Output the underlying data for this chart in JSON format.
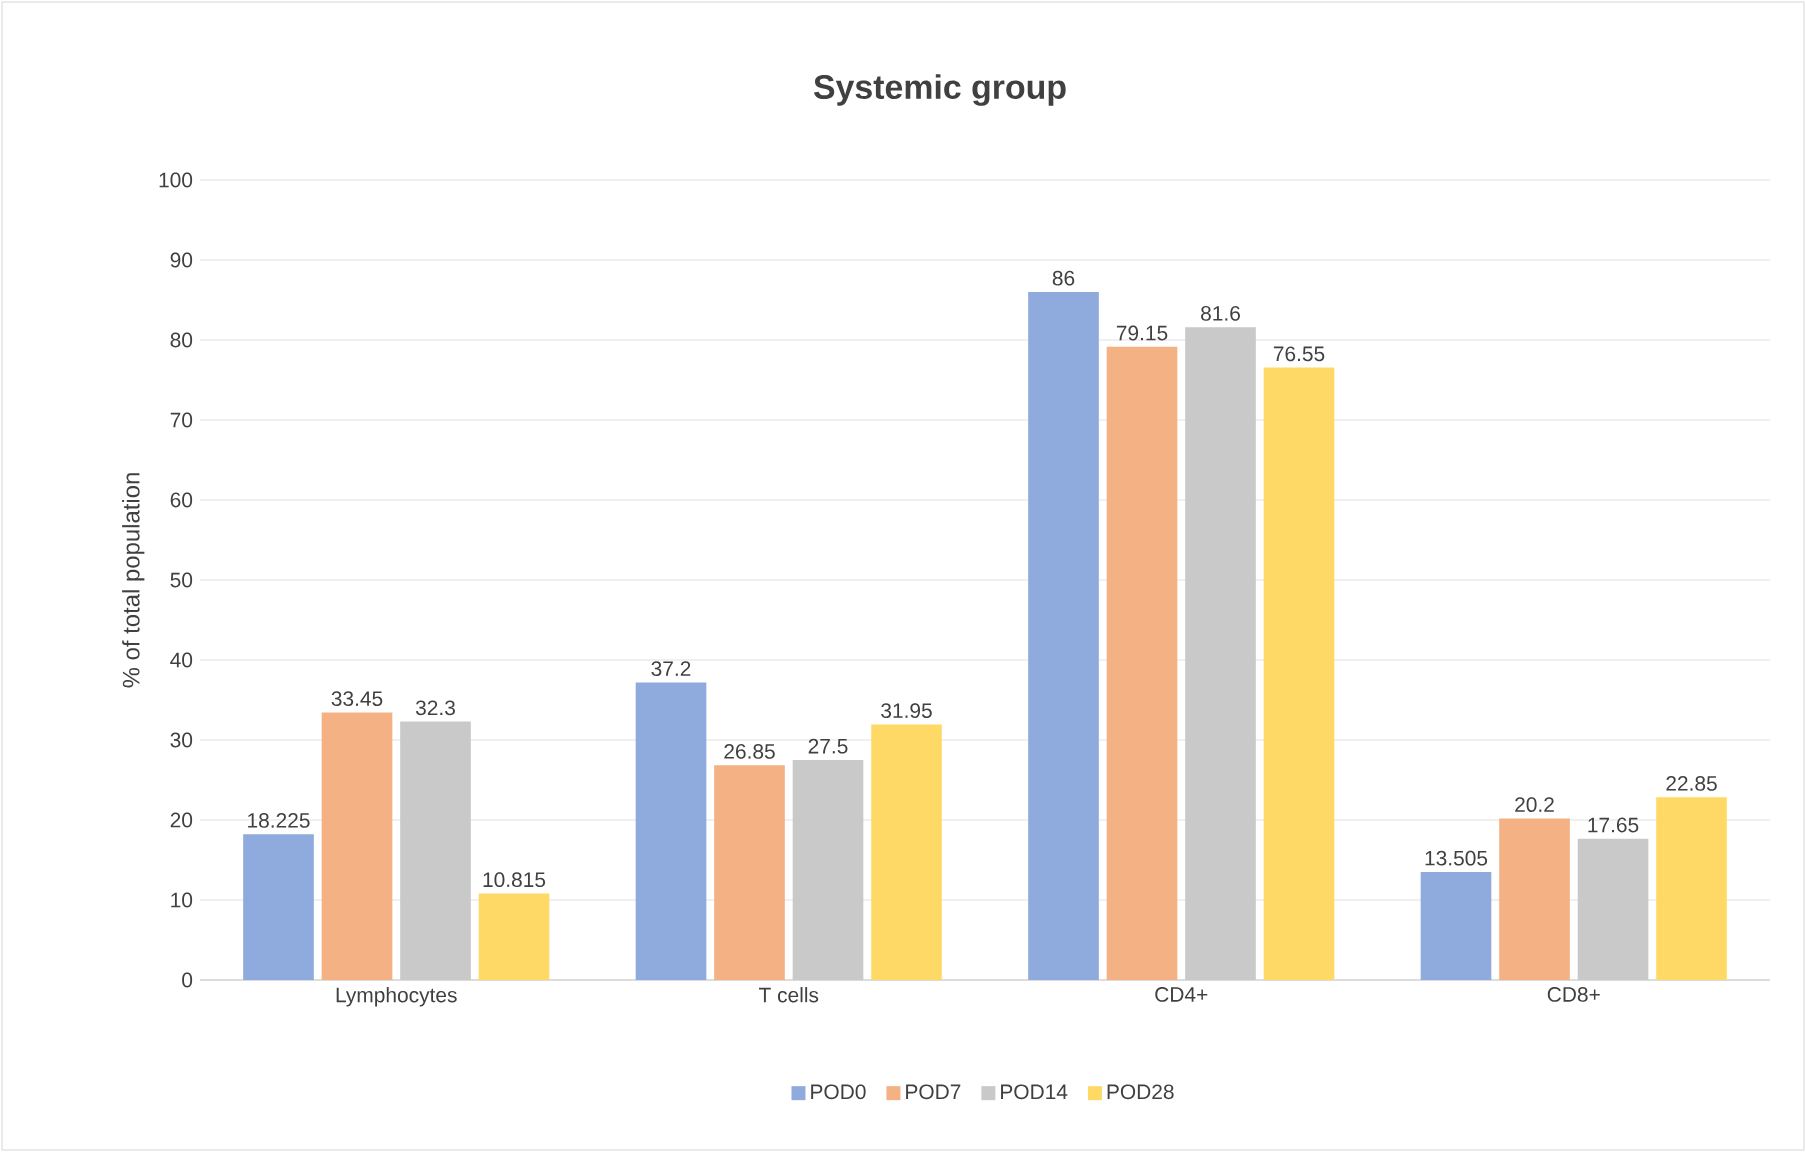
{
  "chart_data": {
    "type": "bar",
    "title": "Systemic group",
    "ylabel": "% of total population",
    "categories": [
      "Lymphocytes",
      "T cells",
      "CD4+",
      "CD8+"
    ],
    "series": [
      {
        "name": "POD0",
        "color": "#8faadc",
        "values": [
          18.225,
          37.2,
          86,
          13.505
        ]
      },
      {
        "name": "POD7",
        "color": "#f4b183",
        "values": [
          33.45,
          26.85,
          79.15,
          20.2
        ]
      },
      {
        "name": "POD14",
        "color": "#c9c9c9",
        "values": [
          32.3,
          27.5,
          81.6,
          17.65
        ]
      },
      {
        "name": "POD28",
        "color": "#ffd966",
        "values": [
          10.815,
          31.95,
          76.55,
          22.85
        ]
      }
    ],
    "ylim": [
      0,
      100
    ],
    "yticks": [
      0,
      10,
      20,
      30,
      40,
      50,
      60,
      70,
      80,
      90,
      100
    ],
    "grid": "y",
    "legend": "bottom",
    "data_labels": true
  }
}
